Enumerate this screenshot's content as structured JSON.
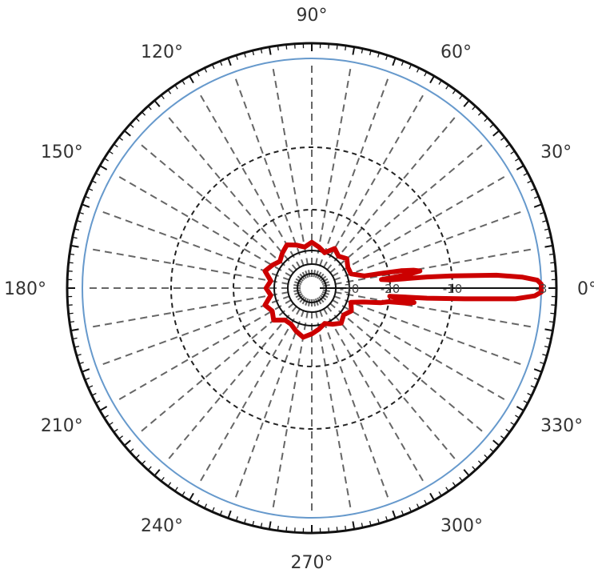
{
  "chart_data": {
    "type": "polar-line",
    "title": "",
    "angle_unit": "deg",
    "angle_tick_labels": [
      "0°",
      "30°",
      "60°",
      "90°",
      "120°",
      "150°",
      "180°",
      "210°",
      "240°",
      "270°",
      "300°",
      "330°"
    ],
    "radial_tick_labels": [
      "-30",
      "-20",
      "-10",
      "-3"
    ],
    "radial_scale": "dB",
    "grid": true,
    "colors": {
      "pattern": "#cc0000",
      "reference_circle": "#6699cc",
      "frame": "#111111",
      "grid": "#666666"
    },
    "series": [
      {
        "values": [
          [
            0,
            -3
          ],
          [
            1,
            -3
          ],
          [
            2,
            -3.3
          ],
          [
            3,
            -4.5
          ],
          [
            4,
            -6.5
          ],
          [
            5,
            -10
          ],
          [
            5.5,
            -14
          ],
          [
            6,
            -20
          ],
          [
            7,
            -22
          ],
          [
            8,
            -17
          ],
          [
            9,
            -15
          ],
          [
            10,
            -16
          ],
          [
            11,
            -18
          ],
          [
            12,
            -22
          ],
          [
            13,
            -26
          ],
          [
            20,
            -29
          ],
          [
            30,
            -29
          ],
          [
            40,
            -28
          ],
          [
            50,
            -29
          ],
          [
            60,
            -28
          ],
          [
            70,
            -30
          ],
          [
            80,
            -29
          ],
          [
            90,
            -28
          ],
          [
            100,
            -29
          ],
          [
            110,
            -28
          ],
          [
            120,
            -27
          ],
          [
            130,
            -28
          ],
          [
            140,
            -29
          ],
          [
            150,
            -28
          ],
          [
            160,
            -27
          ],
          [
            170,
            -29
          ],
          [
            180,
            -28
          ],
          [
            190,
            -29
          ],
          [
            200,
            -27
          ],
          [
            210,
            -28
          ],
          [
            220,
            -27
          ],
          [
            230,
            -29
          ],
          [
            240,
            -29
          ],
          [
            250,
            -28
          ],
          [
            260,
            -27
          ],
          [
            270,
            -28
          ],
          [
            280,
            -29
          ],
          [
            290,
            -30
          ],
          [
            300,
            -29
          ],
          [
            310,
            -28
          ],
          [
            320,
            -29
          ],
          [
            330,
            -28
          ],
          [
            340,
            -29
          ],
          [
            345,
            -26
          ],
          [
            348,
            -22
          ],
          [
            350,
            -20
          ],
          [
            351,
            -17
          ],
          [
            352,
            -16
          ],
          [
            353,
            -18
          ],
          [
            354,
            -20
          ],
          [
            355,
            -14
          ],
          [
            356,
            -9
          ],
          [
            357,
            -5
          ],
          [
            358,
            -3.5
          ],
          [
            359,
            -3
          ],
          [
            360,
            -3
          ]
        ]
      }
    ]
  }
}
